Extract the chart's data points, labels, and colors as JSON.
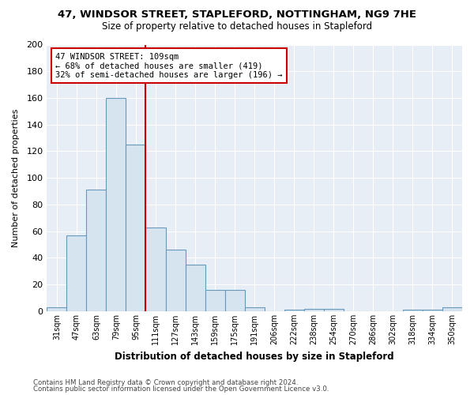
{
  "title": "47, WINDSOR STREET, STAPLEFORD, NOTTINGHAM, NG9 7HE",
  "subtitle": "Size of property relative to detached houses in Stapleford",
  "xlabel": "Distribution of detached houses by size in Stapleford",
  "ylabel": "Number of detached properties",
  "bar_color": "#d6e4f0",
  "bar_edge_color": "#6699bb",
  "categories": [
    "31sqm",
    "47sqm",
    "63sqm",
    "79sqm",
    "95sqm",
    "111sqm",
    "127sqm",
    "143sqm",
    "159sqm",
    "175sqm",
    "191sqm",
    "206sqm",
    "222sqm",
    "238sqm",
    "254sqm",
    "270sqm",
    "286sqm",
    "302sqm",
    "318sqm",
    "334sqm",
    "350sqm"
  ],
  "values": [
    3,
    57,
    91,
    160,
    125,
    63,
    46,
    35,
    16,
    16,
    3,
    0,
    1,
    2,
    2,
    0,
    0,
    0,
    1,
    1,
    3
  ],
  "ylim": [
    0,
    200
  ],
  "yticks": [
    0,
    20,
    40,
    60,
    80,
    100,
    120,
    140,
    160,
    180,
    200
  ],
  "vline_x": 4.5,
  "annotation_text": "47 WINDSOR STREET: 109sqm\n← 68% of detached houses are smaller (419)\n32% of semi-detached houses are larger (196) →",
  "annotation_box_color": "#cc0000",
  "vline_color": "#cc0000",
  "footer_line1": "Contains HM Land Registry data © Crown copyright and database right 2024.",
  "footer_line2": "Contains public sector information licensed under the Open Government Licence v3.0.",
  "background_color": "#ffffff",
  "plot_bg_color": "#e8eef5",
  "grid_color": "#ffffff"
}
